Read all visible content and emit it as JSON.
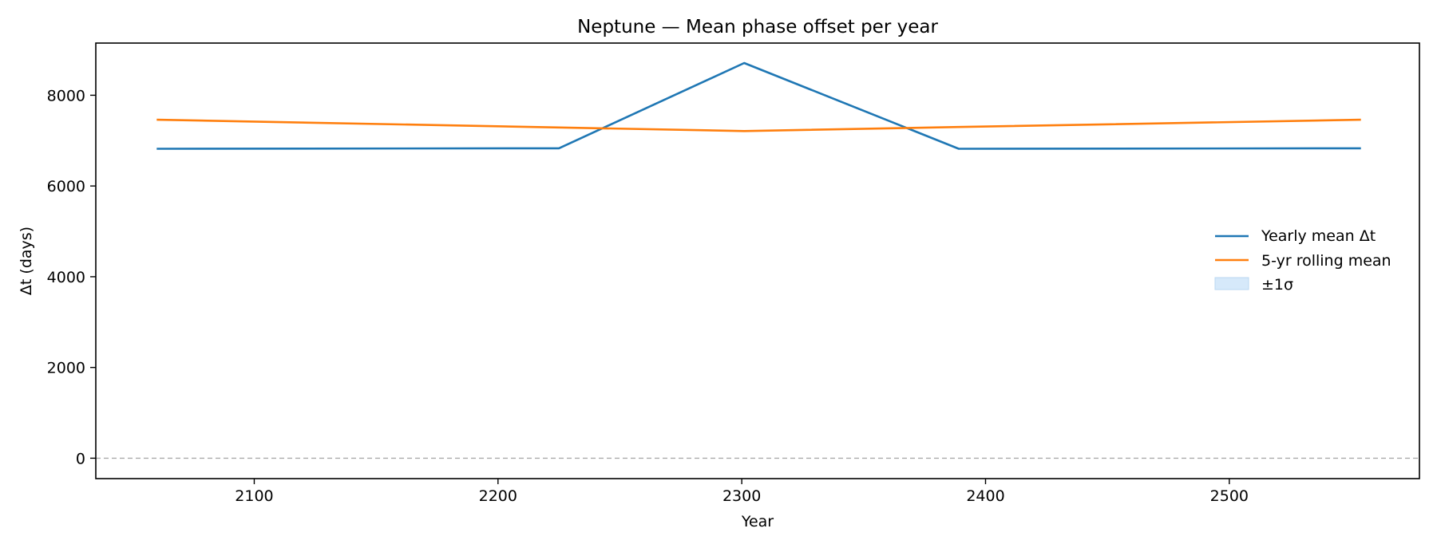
{
  "chart_data": {
    "type": "line",
    "title": "Neptune — Mean phase offset per year",
    "xlabel": "Year",
    "ylabel": "Δt (days)",
    "xlim": [
      2035,
      2578
    ],
    "ylim": [
      -450,
      9150
    ],
    "xticks": [
      2100,
      2200,
      2300,
      2400,
      2500
    ],
    "yticks": [
      0,
      2000,
      4000,
      6000,
      8000
    ],
    "grid": false,
    "legend_position": "center-right",
    "reference_line": {
      "y": 0,
      "style": "dashed",
      "color": "#aaaaaa"
    },
    "series": [
      {
        "name": "Yearly mean Δt",
        "color": "#1f77b4",
        "x": [
          2060,
          2225,
          2301,
          2389,
          2554
        ],
        "y": [
          6820,
          6830,
          8710,
          6820,
          6830
        ]
      },
      {
        "name": "5-yr rolling mean",
        "color": "#ff7f0e",
        "x": [
          2060,
          2225,
          2301,
          2389,
          2554
        ],
        "y": [
          7460,
          7290,
          7210,
          7300,
          7460
        ]
      }
    ],
    "band": {
      "name": "±1σ",
      "color": "#d6e9fa"
    }
  }
}
